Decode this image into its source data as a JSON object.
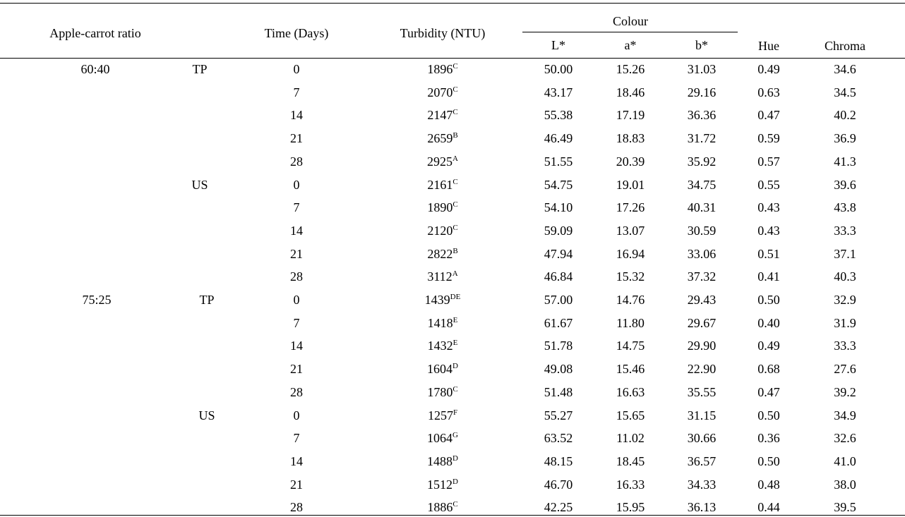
{
  "table": {
    "headers": {
      "ratio": "Apple-carrot ratio",
      "time": "Time (Days)",
      "turbidity": "Turbidity (NTU)",
      "colour": "Colour",
      "L": "L*",
      "a": "a*",
      "b": "b*",
      "hue": "Hue",
      "chroma": "Chroma"
    },
    "rows": [
      {
        "ratio": "60:40",
        "treat": "TP",
        "time": "0",
        "turb": "1896",
        "sup": "C",
        "L": "50.00",
        "a": "15.26",
        "b": "31.03",
        "hue": "0.49",
        "chroma": "34.6"
      },
      {
        "ratio": "",
        "treat": "",
        "time": "7",
        "turb": "2070",
        "sup": "C",
        "L": "43.17",
        "a": "18.46",
        "b": "29.16",
        "hue": "0.63",
        "chroma": "34.5"
      },
      {
        "ratio": "",
        "treat": "",
        "time": "14",
        "turb": "2147",
        "sup": "C",
        "L": "55.38",
        "a": "17.19",
        "b": "36.36",
        "hue": "0.47",
        "chroma": "40.2"
      },
      {
        "ratio": "",
        "treat": "",
        "time": "21",
        "turb": "2659",
        "sup": "B",
        "L": "46.49",
        "a": "18.83",
        "b": "31.72",
        "hue": "0.59",
        "chroma": "36.9"
      },
      {
        "ratio": "",
        "treat": "",
        "time": "28",
        "turb": "2925",
        "sup": "A",
        "L": "51.55",
        "a": "20.39",
        "b": "35.92",
        "hue": "0.57",
        "chroma": "41.3"
      },
      {
        "ratio": "",
        "treat": "US",
        "time": "0",
        "turb": "2161",
        "sup": "C",
        "L": "54.75",
        "a": "19.01",
        "b": "34.75",
        "hue": "0.55",
        "chroma": "39.6"
      },
      {
        "ratio": "",
        "treat": "",
        "time": "7",
        "turb": "1890",
        "sup": "C",
        "L": "54.10",
        "a": "17.26",
        "b": "40.31",
        "hue": "0.43",
        "chroma": "43.8"
      },
      {
        "ratio": "",
        "treat": "",
        "time": "14",
        "turb": "2120",
        "sup": "C",
        "L": "59.09",
        "a": "13.07",
        "b": "30.59",
        "hue": "0.43",
        "chroma": "33.3"
      },
      {
        "ratio": "",
        "treat": "",
        "time": "21",
        "turb": "2822",
        "sup": "B",
        "L": "47.94",
        "a": "16.94",
        "b": "33.06",
        "hue": "0.51",
        "chroma": "37.1"
      },
      {
        "ratio": "",
        "treat": "",
        "time": "28",
        "turb": "3112",
        "sup": "A",
        "L": "46.84",
        "a": "15.32",
        "b": "37.32",
        "hue": "0.41",
        "chroma": "40.3"
      },
      {
        "ratio": "75:25",
        "treat": "TP",
        "time": "0",
        "turb": "1439",
        "sup": "DE",
        "L": "57.00",
        "a": "14.76",
        "b": "29.43",
        "hue": "0.50",
        "chroma": "32.9"
      },
      {
        "ratio": "",
        "treat": "",
        "time": "7",
        "turb": "1418",
        "sup": "E",
        "L": "61.67",
        "a": "11.80",
        "b": "29.67",
        "hue": "0.40",
        "chroma": "31.9"
      },
      {
        "ratio": "",
        "treat": "",
        "time": "14",
        "turb": "1432",
        "sup": "E",
        "L": "51.78",
        "a": "14.75",
        "b": "29.90",
        "hue": "0.49",
        "chroma": "33.3"
      },
      {
        "ratio": "",
        "treat": "",
        "time": "21",
        "turb": "1604",
        "sup": "D",
        "L": "49.08",
        "a": "15.46",
        "b": "22.90",
        "hue": "0.68",
        "chroma": "27.6"
      },
      {
        "ratio": "",
        "treat": "",
        "time": "28",
        "turb": "1780",
        "sup": "C",
        "L": "51.48",
        "a": "16.63",
        "b": "35.55",
        "hue": "0.47",
        "chroma": "39.2"
      },
      {
        "ratio": "",
        "treat": "US",
        "time": "0",
        "turb": "1257",
        "sup": "F",
        "L": "55.27",
        "a": "15.65",
        "b": "31.15",
        "hue": "0.50",
        "chroma": "34.9"
      },
      {
        "ratio": "",
        "treat": "",
        "time": "7",
        "turb": "1064",
        "sup": "G",
        "L": "63.52",
        "a": "11.02",
        "b": "30.66",
        "hue": "0.36",
        "chroma": "32.6"
      },
      {
        "ratio": "",
        "treat": "",
        "time": "14",
        "turb": "1488",
        "sup": "D",
        "L": "48.15",
        "a": "18.45",
        "b": "36.57",
        "hue": "0.50",
        "chroma": "41.0"
      },
      {
        "ratio": "",
        "treat": "",
        "time": "21",
        "turb": "1512",
        "sup": "D",
        "L": "46.70",
        "a": "16.33",
        "b": "34.33",
        "hue": "0.48",
        "chroma": "38.0"
      },
      {
        "ratio": "",
        "treat": "",
        "time": "28",
        "turb": "1886",
        "sup": "C",
        "L": "42.25",
        "a": "15.95",
        "b": "36.13",
        "hue": "0.44",
        "chroma": "39.5"
      }
    ]
  }
}
